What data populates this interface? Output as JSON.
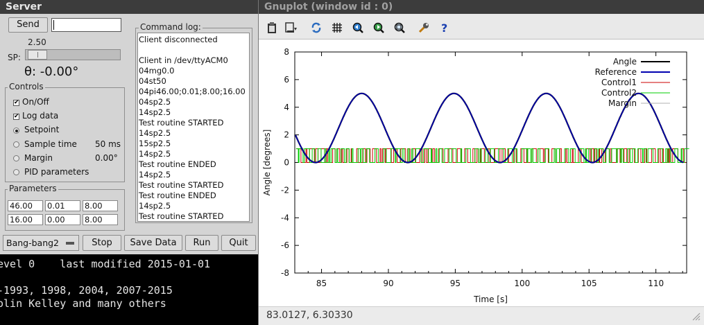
{
  "server": {
    "title": "Server",
    "send_label": "Send",
    "send_value": "",
    "sp_value": "2.50",
    "sp_label": "SP:",
    "sp_fraction": 0.12,
    "theta_label": "θ: -0.00°",
    "controls": {
      "title": "Controls",
      "on_off": {
        "label": "On/Off",
        "checked": true
      },
      "log_data": {
        "label": "Log data",
        "checked": true
      },
      "setpoint": {
        "label": "Setpoint",
        "selected": true
      },
      "sample_time": {
        "label": "Sample time",
        "value": "50 ms"
      },
      "margin": {
        "label": "Margin",
        "value": "0.00°"
      },
      "pid": {
        "label": "PID parameters"
      }
    },
    "parameters": {
      "title": "Parameters",
      "row1": [
        "46.00",
        "0.01",
        "8.00"
      ],
      "row2": [
        "16.00",
        "0.00",
        "8.00"
      ]
    },
    "command_log": {
      "title": "Command log:",
      "lines": [
        "Client disconnected",
        "",
        "Client in /dev/ttyACM0",
        "04mg0.0",
        "04st50",
        "04pi46.00;0.01;8.00;16.00",
        "04sp2.5",
        "14sp2.5",
        "Test routine STARTED",
        "14sp2.5",
        "15sp2.5",
        "14sp2.5",
        "Test routine ENDED",
        "14sp2.5",
        "Test routine STARTED",
        "Test routine ENDED",
        "14sp2.5",
        "Test routine STARTED"
      ]
    },
    "mode_select": "Bang-bang2",
    "stop_label": "Stop",
    "save_label": "Save Data",
    "run_label": "Run",
    "quit_label": "Quit"
  },
  "terminal": {
    "lines": [
      "evel 0    last modified 2015-01-01",
      "",
      "-1993, 1998, 2004, 2007-2015",
      "olin Kelley and many others"
    ]
  },
  "gnuplot": {
    "title": "Gnuplot (window id : 0)",
    "toolbar": [
      "clipboard-icon",
      "export-icon",
      "replot-icon",
      "grid-icon",
      "zoom-previous-icon",
      "zoom-next-icon",
      "unzoom-icon",
      "settings-icon",
      "help-icon"
    ],
    "status": "83.0127,  6.30330"
  },
  "chart_data": {
    "type": "line",
    "xlabel": "Time [s]",
    "ylabel": "Angle [degrees]",
    "xlim": [
      83.0,
      112.3
    ],
    "ylim": [
      -8,
      8
    ],
    "x_ticks": [
      85,
      90,
      95,
      100,
      105,
      110
    ],
    "y_ticks": [
      -8,
      -6,
      -4,
      -2,
      0,
      2,
      4,
      6,
      8
    ],
    "legend_position": "top-right",
    "grid": false,
    "series": [
      {
        "name": "Angle",
        "color": "#000000",
        "kind": "sine",
        "amplitude": 2.5,
        "offset": 2.5,
        "period": 6.9,
        "peak_x": 88.0
      },
      {
        "name": "Reference",
        "color": "#0000b0",
        "kind": "sine",
        "amplitude": 2.5,
        "offset": 2.5,
        "period": 6.9,
        "peak_x": 88.0
      },
      {
        "name": "Control1",
        "color": "#cc0000",
        "kind": "switching",
        "low": 0,
        "high": 1
      },
      {
        "name": "Control2",
        "color": "#00cc00",
        "kind": "switching",
        "low": 0,
        "high": 1
      },
      {
        "name": "Margin",
        "color": "#b0b0b0",
        "kind": "hidden"
      }
    ]
  }
}
